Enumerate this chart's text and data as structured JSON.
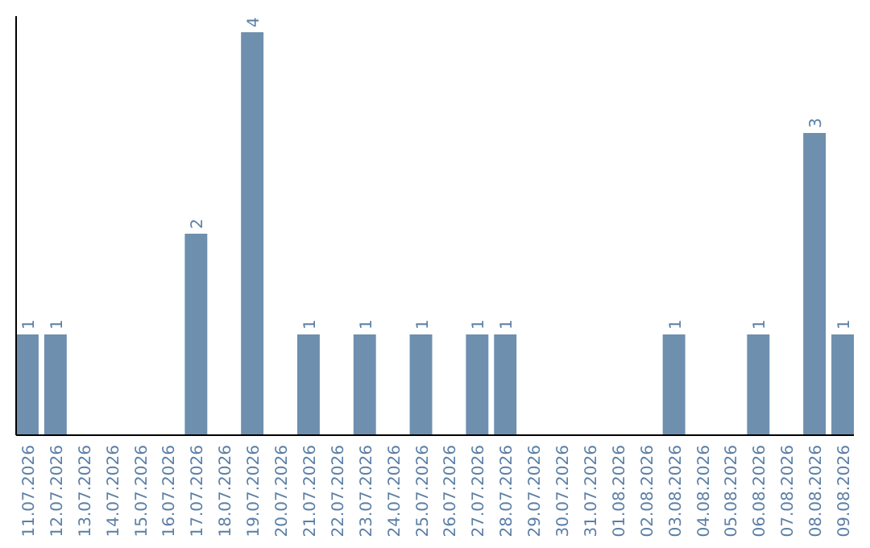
{
  "chart_data": {
    "type": "bar",
    "categories": [
      "11.07.2026",
      "12.07.2026",
      "13.07.2026",
      "14.07.2026",
      "15.07.2026",
      "16.07.2026",
      "17.07.2026",
      "18.07.2026",
      "19.07.2026",
      "20.07.2026",
      "21.07.2026",
      "22.07.2026",
      "23.07.2026",
      "24.07.2026",
      "25.07.2026",
      "26.07.2026",
      "27.07.2026",
      "28.07.2026",
      "29.07.2026",
      "30.07.2026",
      "31.07.2026",
      "01.08.2026",
      "02.08.2026",
      "03.08.2026",
      "04.08.2026",
      "05.08.2026",
      "06.08.2026",
      "07.08.2026",
      "08.08.2026",
      "09.08.2026"
    ],
    "values": [
      1,
      1,
      0,
      0,
      0,
      0,
      2,
      0,
      4,
      0,
      1,
      0,
      1,
      0,
      1,
      0,
      1,
      1,
      0,
      0,
      0,
      0,
      0,
      1,
      0,
      0,
      1,
      0,
      3,
      1
    ],
    "value_labels": [
      "1",
      "1",
      null,
      null,
      null,
      null,
      "2",
      null,
      "4",
      null,
      "1",
      null,
      "1",
      null,
      "1",
      null,
      "1",
      "1",
      null,
      null,
      null,
      null,
      null,
      "1",
      null,
      null,
      "1",
      null,
      "3",
      "1"
    ],
    "color": "#6e8fae",
    "tick_labels": "x"
  }
}
